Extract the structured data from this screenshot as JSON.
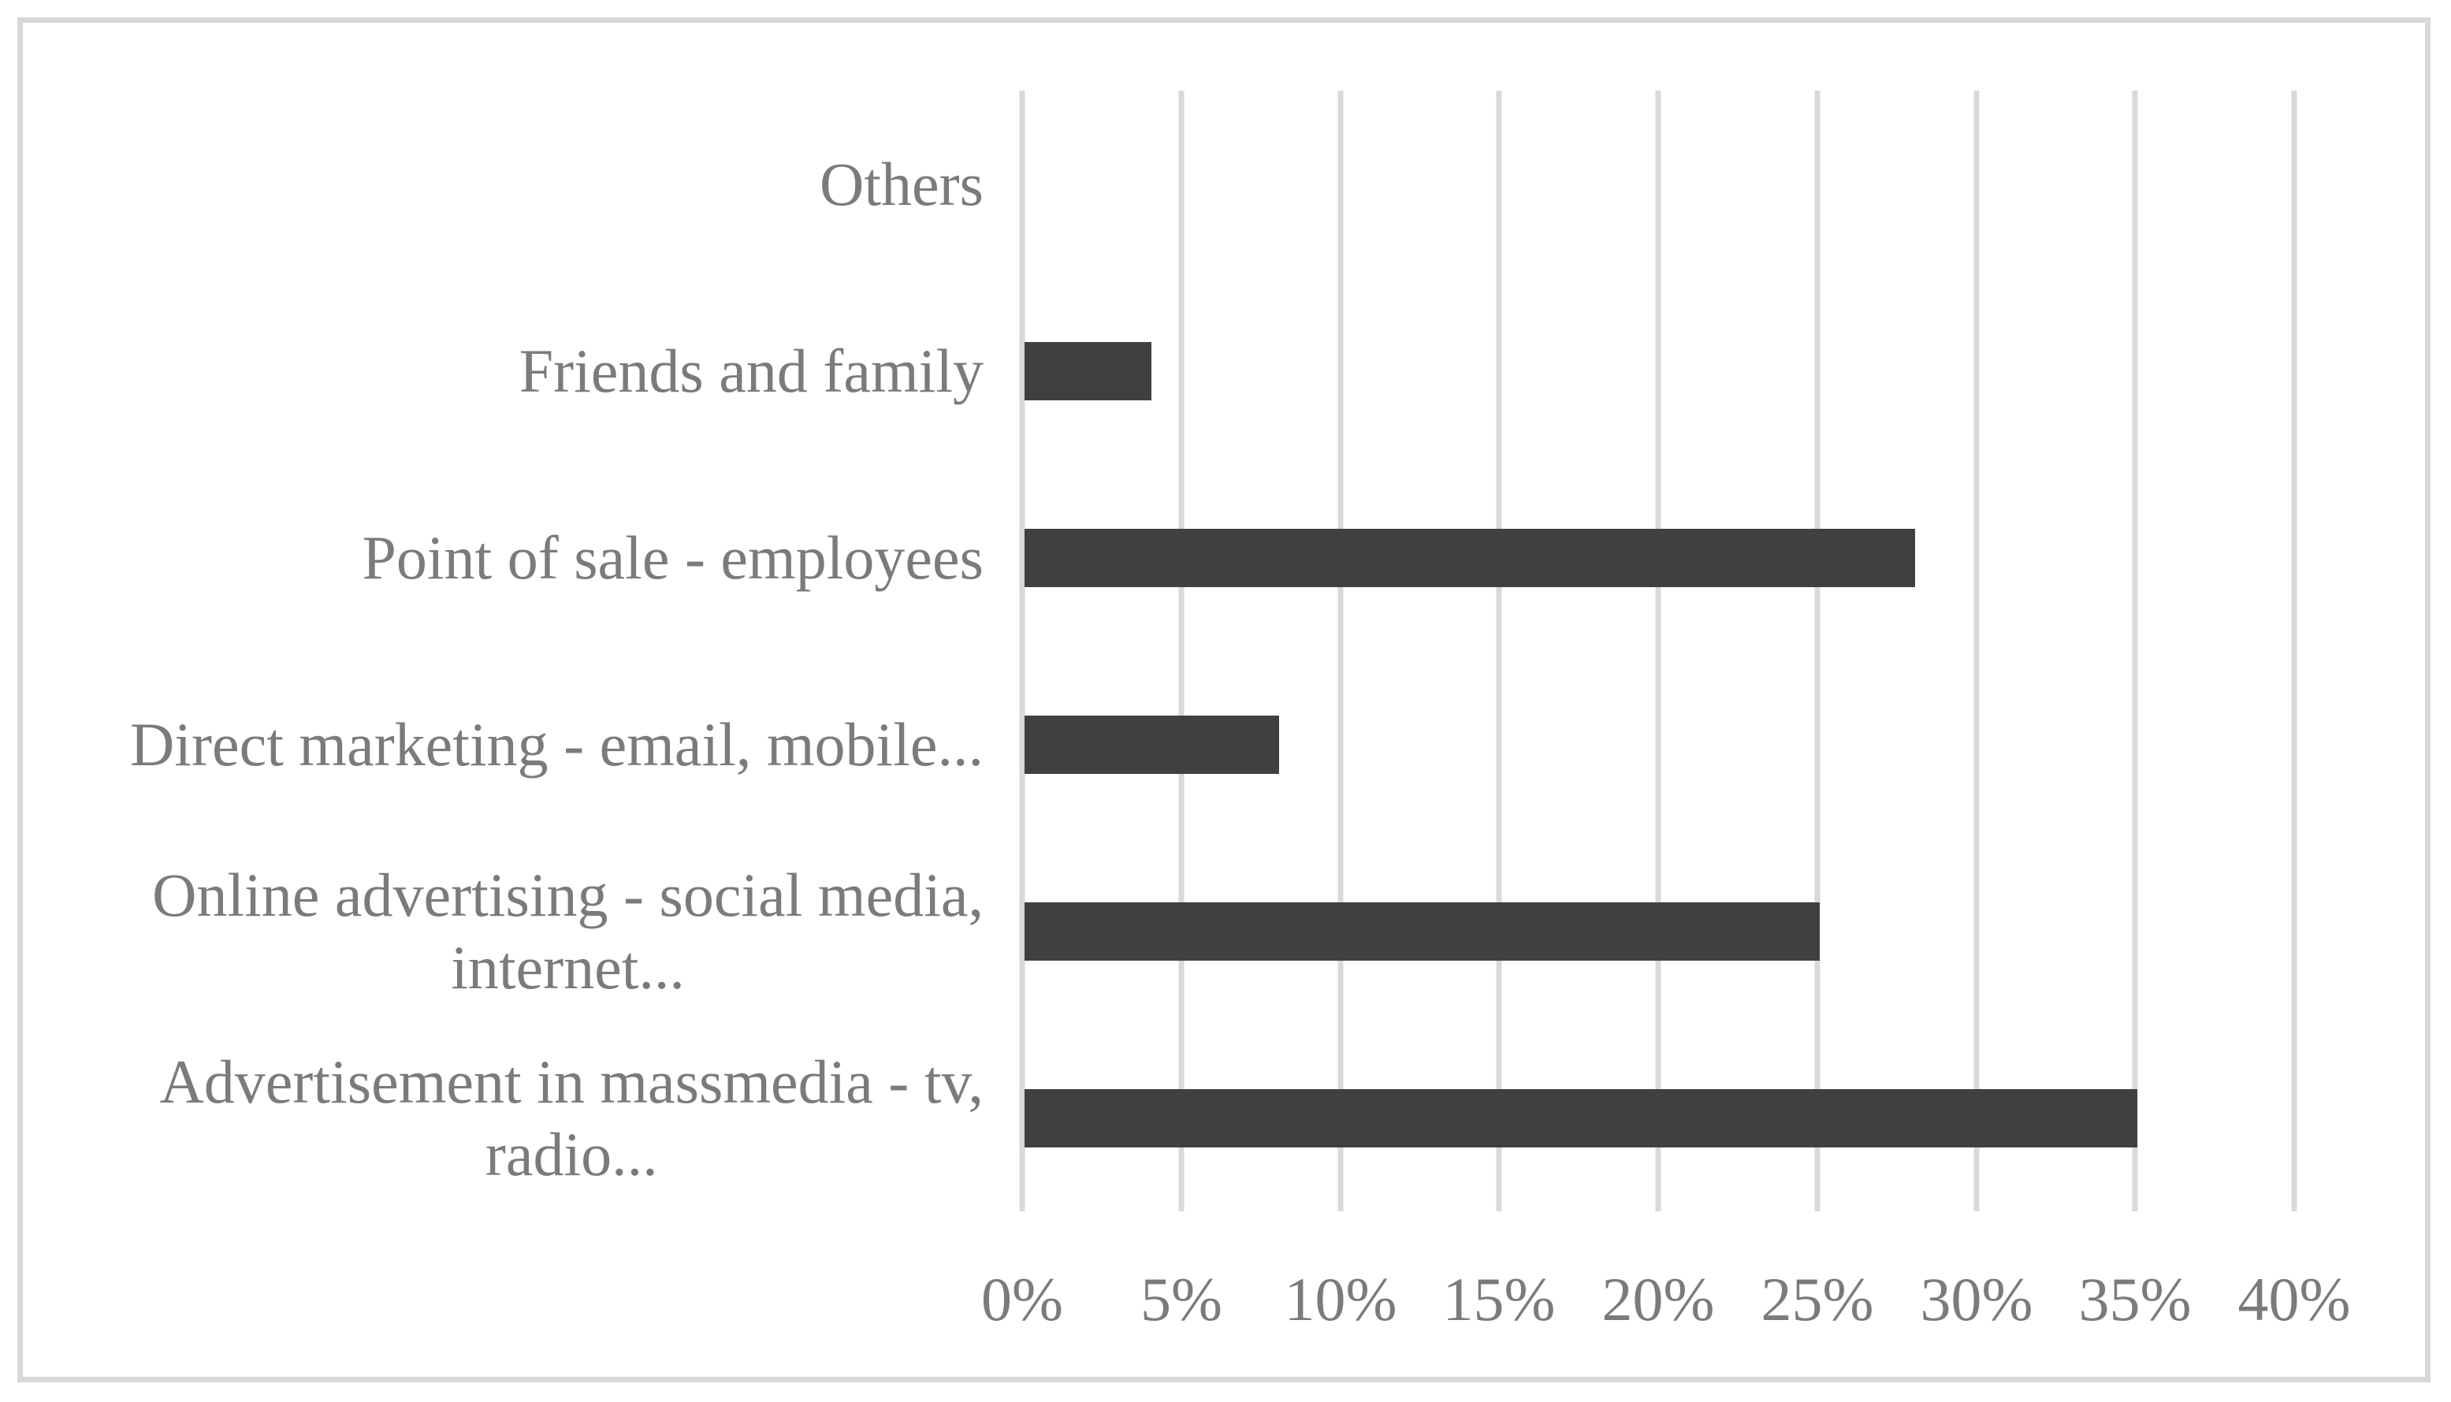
{
  "chart_data": {
    "type": "bar",
    "orientation": "horizontal",
    "title": "",
    "xlabel": "",
    "ylabel": "",
    "unit": "%",
    "categories": [
      "Others",
      "Friends and family",
      "Point of sale - employees",
      "Direct marketing - email, mobile...",
      "Online advertising - social media,\ninternet...",
      "Advertisement in massmedia - tv,\nradio..."
    ],
    "values": [
      0,
      4,
      28,
      8,
      25,
      35
    ],
    "xlim": [
      0,
      40
    ],
    "x_ticks": [
      "0%",
      "5%",
      "10%",
      "15%",
      "20%",
      "25%",
      "30%",
      "35%",
      "40%"
    ],
    "grid": "vertical-only",
    "legend": "none"
  },
  "colors": {
    "bar": "#404040",
    "gridline": "#d9d9d9",
    "text": "#7b7b7b",
    "border": "#d8d8d8",
    "background": "#ffffff"
  }
}
